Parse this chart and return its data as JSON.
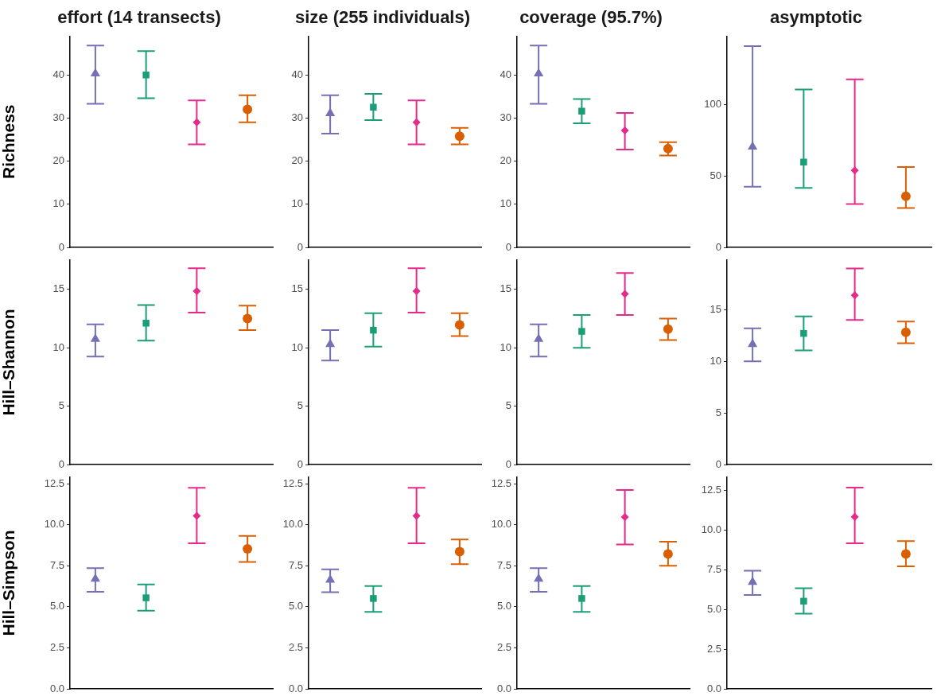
{
  "chart_data": [
    {
      "type": "scatter",
      "title": "effort (14 transects)",
      "ylabel": "Richness",
      "categories": [
        null,
        null,
        null,
        null
      ],
      "ylim": [
        0,
        49
      ],
      "yticks": [
        0,
        10,
        20,
        30,
        40
      ],
      "tick_labels": "y",
      "series": [
        {
          "color": "#7570b3",
          "marker": "triangle",
          "values": [
            40.3,
            null,
            null,
            null
          ],
          "errors": [
            [
              33.3,
              46.8
            ],
            null,
            null,
            null
          ]
        },
        {
          "color": "#1b9e77",
          "marker": "square",
          "values": [
            null,
            40.0,
            null,
            null
          ],
          "errors": [
            null,
            [
              34.6,
              45.5
            ],
            null,
            null
          ]
        },
        {
          "color": "#e7298a",
          "marker": "diamond",
          "values": [
            null,
            null,
            29.0,
            null
          ],
          "errors": [
            null,
            null,
            [
              23.9,
              34.1
            ],
            null
          ]
        },
        {
          "color": "#d95f02",
          "marker": "circle",
          "values": [
            null,
            null,
            null,
            32.0
          ],
          "errors": [
            null,
            null,
            null,
            [
              29.0,
              35.3
            ]
          ]
        }
      ]
    },
    {
      "type": "scatter",
      "title": "size (255 individuals)",
      "categories": [
        null,
        null,
        null,
        null
      ],
      "ylim": [
        0,
        49
      ],
      "yticks": [
        0,
        10,
        20,
        30,
        40
      ],
      "tick_labels": "y",
      "series": [
        {
          "color": "#7570b3",
          "marker": "triangle",
          "values": [
            31.1,
            null,
            null,
            null
          ],
          "errors": [
            [
              26.4,
              35.3
            ],
            null,
            null,
            null
          ]
        },
        {
          "color": "#1b9e77",
          "marker": "square",
          "values": [
            null,
            32.5,
            null,
            null
          ],
          "errors": [
            null,
            [
              29.5,
              35.6
            ],
            null,
            null
          ]
        },
        {
          "color": "#e7298a",
          "marker": "diamond",
          "values": [
            null,
            null,
            29.0,
            null
          ],
          "errors": [
            null,
            null,
            [
              23.9,
              34.1
            ],
            null
          ]
        },
        {
          "color": "#d95f02",
          "marker": "circle",
          "values": [
            null,
            null,
            null,
            25.8
          ],
          "errors": [
            null,
            null,
            null,
            [
              23.9,
              27.7
            ]
          ]
        }
      ]
    },
    {
      "type": "scatter",
      "title": "coverage (95.7%)",
      "categories": [
        null,
        null,
        null,
        null
      ],
      "ylim": [
        0,
        49
      ],
      "yticks": [
        0,
        10,
        20,
        30,
        40
      ],
      "tick_labels": "y",
      "series": [
        {
          "color": "#7570b3",
          "marker": "triangle",
          "values": [
            40.3,
            null,
            null,
            null
          ],
          "errors": [
            [
              33.3,
              46.8
            ],
            null,
            null,
            null
          ]
        },
        {
          "color": "#1b9e77",
          "marker": "square",
          "values": [
            null,
            31.6,
            null,
            null
          ],
          "errors": [
            null,
            [
              28.8,
              34.4
            ],
            null,
            null
          ]
        },
        {
          "color": "#e7298a",
          "marker": "diamond",
          "values": [
            null,
            null,
            27.1,
            null
          ],
          "errors": [
            null,
            null,
            [
              22.7,
              31.2
            ],
            null
          ]
        },
        {
          "color": "#d95f02",
          "marker": "circle",
          "values": [
            null,
            null,
            null,
            22.9
          ],
          "errors": [
            null,
            null,
            null,
            [
              21.3,
              24.4
            ]
          ]
        }
      ]
    },
    {
      "type": "scatter",
      "title": "asymptotic",
      "categories": [
        null,
        null,
        null,
        null
      ],
      "ylim": [
        0,
        148
      ],
      "yticks": [
        0,
        50,
        100
      ],
      "tick_labels": "y",
      "series": [
        {
          "color": "#7570b3",
          "marker": "triangle",
          "values": [
            70.5,
            null,
            null,
            null
          ],
          "errors": [
            [
              42.5,
              141
            ],
            null,
            null,
            null
          ]
        },
        {
          "color": "#1b9e77",
          "marker": "square",
          "values": [
            null,
            59.8,
            null,
            null
          ],
          "errors": [
            null,
            [
              41.7,
              110.6
            ],
            null,
            null
          ]
        },
        {
          "color": "#e7298a",
          "marker": "diamond",
          "values": [
            null,
            null,
            53.9,
            null
          ],
          "errors": [
            null,
            null,
            [
              30.3,
              117.7
            ],
            null
          ]
        },
        {
          "color": "#d95f02",
          "marker": "circle",
          "values": [
            null,
            null,
            null,
            35.8
          ],
          "errors": [
            null,
            null,
            null,
            [
              27.6,
              56.3
            ]
          ]
        }
      ]
    },
    {
      "type": "scatter",
      "ylabel": "Hill–Shannon",
      "categories": [
        null,
        null,
        null,
        null
      ],
      "ylim": [
        0,
        17.5
      ],
      "yticks": [
        0,
        5,
        10,
        15
      ],
      "tick_labels": "y",
      "series": [
        {
          "color": "#7570b3",
          "marker": "triangle",
          "values": [
            10.75,
            null,
            null,
            null
          ],
          "errors": [
            [
              9.25,
              12.0
            ],
            null,
            null,
            null
          ]
        },
        {
          "color": "#1b9e77",
          "marker": "square",
          "values": [
            null,
            12.1,
            null,
            null
          ],
          "errors": [
            null,
            [
              10.6,
              13.65
            ],
            null,
            null
          ]
        },
        {
          "color": "#e7298a",
          "marker": "diamond",
          "values": [
            null,
            null,
            14.85,
            null
          ],
          "errors": [
            null,
            null,
            [
              13.0,
              16.8
            ],
            null
          ]
        },
        {
          "color": "#d95f02",
          "marker": "circle",
          "values": [
            null,
            null,
            null,
            12.5
          ],
          "errors": [
            null,
            null,
            null,
            [
              11.5,
              13.6
            ]
          ]
        }
      ]
    },
    {
      "type": "scatter",
      "categories": [
        null,
        null,
        null,
        null
      ],
      "ylim": [
        0,
        17.5
      ],
      "yticks": [
        0,
        5,
        10,
        15
      ],
      "tick_labels": "y",
      "series": [
        {
          "color": "#7570b3",
          "marker": "triangle",
          "values": [
            10.3,
            null,
            null,
            null
          ],
          "errors": [
            [
              8.9,
              11.5
            ],
            null,
            null,
            null
          ]
        },
        {
          "color": "#1b9e77",
          "marker": "square",
          "values": [
            null,
            11.5,
            null,
            null
          ],
          "errors": [
            null,
            [
              10.1,
              12.95
            ],
            null,
            null
          ]
        },
        {
          "color": "#e7298a",
          "marker": "diamond",
          "values": [
            null,
            null,
            14.85,
            null
          ],
          "errors": [
            null,
            null,
            [
              13.0,
              16.8
            ],
            null
          ]
        },
        {
          "color": "#d95f02",
          "marker": "circle",
          "values": [
            null,
            null,
            null,
            11.95
          ],
          "errors": [
            null,
            null,
            null,
            [
              11.0,
              12.95
            ]
          ]
        }
      ]
    },
    {
      "type": "scatter",
      "categories": [
        null,
        null,
        null,
        null
      ],
      "ylim": [
        0,
        17.5
      ],
      "yticks": [
        0,
        5,
        10,
        15
      ],
      "tick_labels": "y",
      "series": [
        {
          "color": "#7570b3",
          "marker": "triangle",
          "values": [
            10.75,
            null,
            null,
            null
          ],
          "errors": [
            [
              9.25,
              12.0
            ],
            null,
            null,
            null
          ]
        },
        {
          "color": "#1b9e77",
          "marker": "square",
          "values": [
            null,
            11.4,
            null,
            null
          ],
          "errors": [
            null,
            [
              10.0,
              12.8
            ],
            null,
            null
          ]
        },
        {
          "color": "#e7298a",
          "marker": "diamond",
          "values": [
            null,
            null,
            14.6,
            null
          ],
          "errors": [
            null,
            null,
            [
              12.8,
              16.4
            ],
            null
          ]
        },
        {
          "color": "#d95f02",
          "marker": "circle",
          "values": [
            null,
            null,
            null,
            11.6
          ],
          "errors": [
            null,
            null,
            null,
            [
              10.65,
              12.5
            ]
          ]
        }
      ]
    },
    {
      "type": "scatter",
      "categories": [
        null,
        null,
        null,
        null
      ],
      "ylim": [
        0,
        19.8
      ],
      "yticks": [
        0,
        5,
        10,
        15
      ],
      "tick_labels": "y",
      "series": [
        {
          "color": "#7570b3",
          "marker": "triangle",
          "values": [
            11.65,
            null,
            null,
            null
          ],
          "errors": [
            [
              10.0,
              13.2
            ],
            null,
            null,
            null
          ]
        },
        {
          "color": "#1b9e77",
          "marker": "square",
          "values": [
            null,
            12.7,
            null,
            null
          ],
          "errors": [
            null,
            [
              11.05,
              14.35
            ],
            null,
            null
          ]
        },
        {
          "color": "#e7298a",
          "marker": "diamond",
          "values": [
            null,
            null,
            16.4,
            null
          ],
          "errors": [
            null,
            null,
            [
              14.0,
              19.0
            ],
            null
          ]
        },
        {
          "color": "#d95f02",
          "marker": "circle",
          "values": [
            null,
            null,
            null,
            12.8
          ],
          "errors": [
            null,
            null,
            null,
            [
              11.75,
              13.85
            ]
          ]
        }
      ]
    },
    {
      "type": "scatter",
      "ylabel": "Hill–Simpson",
      "categories": [
        null,
        null,
        null,
        null
      ],
      "ylim": [
        0,
        12.9
      ],
      "yticks": [
        {
          "value": 0,
          "label": "0.0"
        },
        2.5,
        {
          "value": 5,
          "label": "5.0"
        },
        7.5,
        {
          "value": 10,
          "label": "10.0"
        },
        12.5
      ],
      "tick_labels": "y",
      "series": [
        {
          "color": "#7570b3",
          "marker": "triangle",
          "values": [
            6.7,
            null,
            null,
            null
          ],
          "errors": [
            [
              5.92,
              7.36
            ],
            null,
            null,
            null
          ]
        },
        {
          "color": "#1b9e77",
          "marker": "square",
          "values": [
            null,
            5.55,
            null,
            null
          ],
          "errors": [
            null,
            [
              4.76,
              6.37
            ],
            null,
            null
          ]
        },
        {
          "color": "#e7298a",
          "marker": "diamond",
          "values": [
            null,
            null,
            10.55,
            null
          ],
          "errors": [
            null,
            null,
            [
              8.87,
              12.26
            ],
            null
          ]
        },
        {
          "color": "#d95f02",
          "marker": "circle",
          "values": [
            null,
            null,
            null,
            8.53
          ],
          "errors": [
            null,
            null,
            null,
            [
              7.74,
              9.32
            ]
          ]
        }
      ]
    },
    {
      "type": "scatter",
      "categories": [
        null,
        null,
        null,
        null
      ],
      "ylim": [
        0,
        12.9
      ],
      "yticks": [
        {
          "value": 0,
          "label": "0.0"
        },
        2.5,
        {
          "value": 5,
          "label": "5.0"
        },
        7.5,
        {
          "value": 10,
          "label": "10.0"
        },
        12.5
      ],
      "tick_labels": "y",
      "series": [
        {
          "color": "#7570b3",
          "marker": "triangle",
          "values": [
            6.64,
            null,
            null,
            null
          ],
          "errors": [
            [
              5.89,
              7.29
            ],
            null,
            null,
            null
          ]
        },
        {
          "color": "#1b9e77",
          "marker": "square",
          "values": [
            null,
            5.51,
            null,
            null
          ],
          "errors": [
            null,
            [
              4.69,
              6.27
            ],
            null,
            null
          ]
        },
        {
          "color": "#e7298a",
          "marker": "diamond",
          "values": [
            null,
            null,
            10.55,
            null
          ],
          "errors": [
            null,
            null,
            [
              8.87,
              12.26
            ],
            null
          ]
        },
        {
          "color": "#d95f02",
          "marker": "circle",
          "values": [
            null,
            null,
            null,
            8.36
          ],
          "errors": [
            null,
            null,
            null,
            [
              7.6,
              9.11
            ]
          ]
        }
      ]
    },
    {
      "type": "scatter",
      "categories": [
        null,
        null,
        null,
        null
      ],
      "ylim": [
        0,
        12.9
      ],
      "yticks": [
        {
          "value": 0,
          "label": "0.0"
        },
        2.5,
        {
          "value": 5,
          "label": "5.0"
        },
        7.5,
        {
          "value": 10,
          "label": "10.0"
        },
        12.5
      ],
      "tick_labels": "y",
      "series": [
        {
          "color": "#7570b3",
          "marker": "triangle",
          "values": [
            6.7,
            null,
            null,
            null
          ],
          "errors": [
            [
              5.92,
              7.36
            ],
            null,
            null,
            null
          ]
        },
        {
          "color": "#1b9e77",
          "marker": "square",
          "values": [
            null,
            5.51,
            null,
            null
          ],
          "errors": [
            null,
            [
              4.69,
              6.27
            ],
            null,
            null
          ]
        },
        {
          "color": "#e7298a",
          "marker": "diamond",
          "values": [
            null,
            null,
            10.48,
            null
          ],
          "errors": [
            null,
            null,
            [
              8.8,
              12.12
            ],
            null
          ]
        },
        {
          "color": "#d95f02",
          "marker": "circle",
          "values": [
            null,
            null,
            null,
            8.22
          ],
          "errors": [
            null,
            null,
            null,
            [
              7.5,
              8.97
            ]
          ]
        }
      ]
    },
    {
      "type": "scatter",
      "categories": [
        null,
        null,
        null,
        null
      ],
      "ylim": [
        0,
        13.3
      ],
      "yticks": [
        {
          "value": 0,
          "label": "0.0"
        },
        2.5,
        {
          "value": 5,
          "label": "5.0"
        },
        7.5,
        {
          "value": 10,
          "label": "10.0"
        },
        12.5
      ],
      "tick_labels": "y",
      "series": [
        {
          "color": "#7570b3",
          "marker": "triangle",
          "values": [
            6.71,
            null,
            null,
            null
          ],
          "errors": [
            [
              5.9,
              7.42
            ],
            null,
            null,
            null
          ]
        },
        {
          "color": "#1b9e77",
          "marker": "square",
          "values": [
            null,
            5.51,
            null,
            null
          ],
          "errors": [
            null,
            [
              4.73,
              6.33
            ],
            null,
            null
          ]
        },
        {
          "color": "#e7298a",
          "marker": "diamond",
          "values": [
            null,
            null,
            10.81,
            null
          ],
          "errors": [
            null,
            null,
            [
              9.15,
              12.65
            ],
            null
          ]
        },
        {
          "color": "#d95f02",
          "marker": "circle",
          "values": [
            null,
            null,
            null,
            8.48
          ],
          "errors": [
            null,
            null,
            null,
            [
              7.7,
              9.29
            ]
          ]
        }
      ]
    }
  ]
}
